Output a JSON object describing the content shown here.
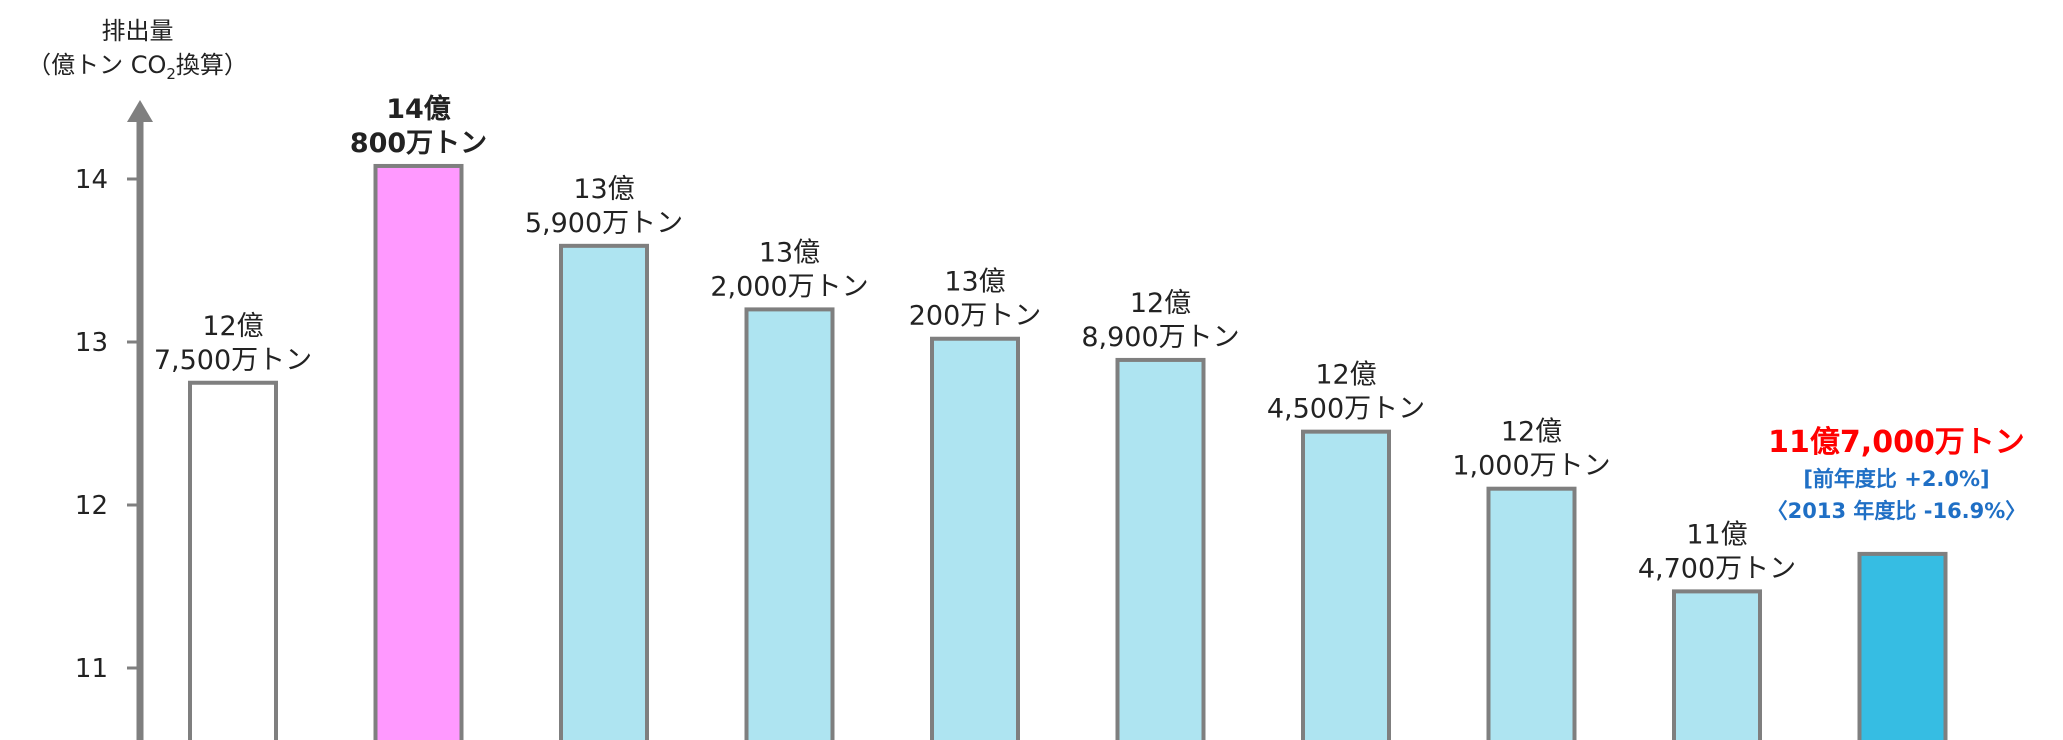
{
  "chart_data": {
    "type": "bar",
    "ylabel_line1": "排出量",
    "ylabel_line2_pre": "（億トン CO",
    "ylabel_line2_sub": "2",
    "ylabel_line2_post": "換算）",
    "ylim": [
      10.65,
      14.5
    ],
    "yticks": [
      "11",
      "12",
      "13",
      "14"
    ],
    "ytick_values": [
      11,
      12,
      13,
      14
    ],
    "values": [
      12.75,
      14.08,
      13.59,
      13.2,
      13.02,
      12.89,
      12.45,
      12.1,
      11.47,
      11.7
    ],
    "bar_colors": [
      "#ffffff",
      "#ff99ff",
      "#aee4f1",
      "#aee4f1",
      "#aee4f1",
      "#aee4f1",
      "#aee4f1",
      "#aee4f1",
      "#aee4f1",
      "#36bde3"
    ],
    "bar_labels": [
      {
        "lines": [
          "12億",
          "7,500万トン"
        ],
        "bold": false
      },
      {
        "lines": [
          "14億",
          "800万トン"
        ],
        "bold": true
      },
      {
        "lines": [
          "13億",
          "5,900万トン"
        ],
        "bold": false
      },
      {
        "lines": [
          "13億",
          "2,000万トン"
        ],
        "bold": false
      },
      {
        "lines": [
          "13億",
          "200万トン"
        ],
        "bold": false
      },
      {
        "lines": [
          "12億",
          "8,900万トン"
        ],
        "bold": false
      },
      {
        "lines": [
          "12億",
          "4,500万トン"
        ],
        "bold": false
      },
      {
        "lines": [
          "12億",
          "1,000万トン"
        ],
        "bold": false
      },
      {
        "lines": [
          "11億",
          "4,700万トン"
        ],
        "bold": false
      }
    ],
    "highlight": {
      "main": "11億7,000万トン",
      "sub1": "[前年度比 +2.0%]",
      "sub2": "〈2013 年度比 -16.9%〉",
      "main_color": "#ff0000",
      "sub_color": "#1f6fc5"
    },
    "axis_color": "#7f7f7f",
    "bar_edge_color": "#7f7f7f"
  }
}
